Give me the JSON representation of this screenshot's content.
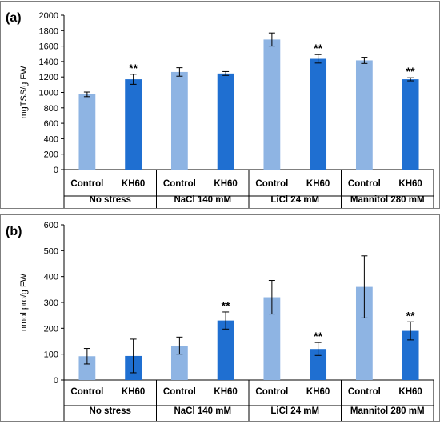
{
  "chart_data": [
    {
      "type": "bar",
      "panel_label": "(a)",
      "ylabel": "mgTSS/g FW",
      "ylim": [
        0,
        2000
      ],
      "yticks": [
        0,
        200,
        400,
        600,
        800,
        1000,
        1200,
        1400,
        1600,
        1800,
        2000
      ],
      "groups": [
        "No stress",
        "NaCl 140 mM",
        "LiCl 24 mM",
        "Mannitol 280 mM"
      ],
      "categories": [
        "Control",
        "KH60"
      ],
      "colors": {
        "Control": "#8eb4e3",
        "KH60": "#1f6fd1"
      },
      "bars": [
        {
          "group": "No stress",
          "category": "Control",
          "value": 975,
          "error": 30,
          "sig": ""
        },
        {
          "group": "No stress",
          "category": "KH60",
          "value": 1170,
          "error": 65,
          "sig": "**"
        },
        {
          "group": "NaCl 140 mM",
          "category": "Control",
          "value": 1265,
          "error": 55,
          "sig": ""
        },
        {
          "group": "NaCl 140 mM",
          "category": "KH60",
          "value": 1245,
          "error": 25,
          "sig": ""
        },
        {
          "group": "LiCl 24 mM",
          "category": "Control",
          "value": 1685,
          "error": 85,
          "sig": ""
        },
        {
          "group": "LiCl 24 mM",
          "category": "KH60",
          "value": 1435,
          "error": 55,
          "sig": "**"
        },
        {
          "group": "Mannitol 280 mM",
          "category": "Control",
          "value": 1415,
          "error": 40,
          "sig": ""
        },
        {
          "group": "Mannitol 280 mM",
          "category": "KH60",
          "value": 1170,
          "error": 20,
          "sig": "**"
        }
      ],
      "grid": false
    },
    {
      "type": "bar",
      "panel_label": "(b)",
      "ylabel": "nmol pro/g FW",
      "ylim": [
        0,
        600
      ],
      "yticks": [
        0,
        100,
        200,
        300,
        400,
        500,
        600
      ],
      "groups": [
        "No stress",
        "NaCl 140 mM",
        "LiCl 24 mM",
        "Mannitol 280 mM"
      ],
      "categories": [
        "Control",
        "KH60"
      ],
      "colors": {
        "Control": "#8eb4e3",
        "KH60": "#1f6fd1"
      },
      "bars": [
        {
          "group": "No stress",
          "category": "Control",
          "value": 92,
          "error": 30,
          "sig": ""
        },
        {
          "group": "No stress",
          "category": "KH60",
          "value": 93,
          "error": 65,
          "sig": ""
        },
        {
          "group": "NaCl 140 mM",
          "category": "Control",
          "value": 133,
          "error": 33,
          "sig": ""
        },
        {
          "group": "NaCl 140 mM",
          "category": "KH60",
          "value": 230,
          "error": 33,
          "sig": "**"
        },
        {
          "group": "LiCl 24 mM",
          "category": "Control",
          "value": 320,
          "error": 65,
          "sig": ""
        },
        {
          "group": "LiCl 24 mM",
          "category": "KH60",
          "value": 120,
          "error": 25,
          "sig": "**"
        },
        {
          "group": "Mannitol 280 mM",
          "category": "Control",
          "value": 360,
          "error": 120,
          "sig": ""
        },
        {
          "group": "Mannitol 280 mM",
          "category": "KH60",
          "value": 190,
          "error": 35,
          "sig": "**"
        }
      ],
      "grid": false
    }
  ]
}
